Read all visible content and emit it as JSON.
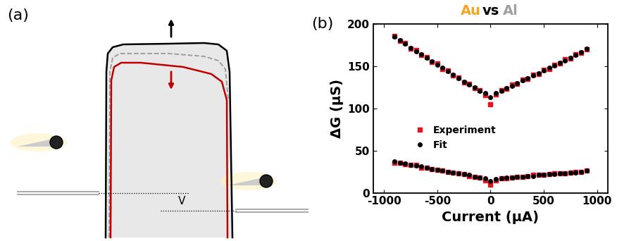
{
  "diagram": {
    "panel_label": "(a)",
    "bias_label": "V"
  },
  "chart_data": {
    "type": "scatter",
    "panel_label": "(b)",
    "title": "Au vs Al",
    "title_colors": [
      "#f5a623",
      "#000000",
      "#a0a0a0"
    ],
    "x_label": "Current (µA)",
    "y_label": "ΔG (µS)",
    "x": [
      -900,
      -850,
      -800,
      -750,
      -700,
      -650,
      -600,
      -550,
      -500,
      -450,
      -400,
      -350,
      -300,
      -250,
      -200,
      -150,
      -100,
      -50,
      0,
      50,
      100,
      150,
      200,
      250,
      300,
      350,
      400,
      450,
      500,
      550,
      600,
      650,
      700,
      750,
      800,
      850,
      900
    ],
    "series": [
      {
        "name": "Experiment",
        "color": "#e8141b",
        "marker": "square",
        "line_style": "none",
        "values": [
          [
            186,
            180,
            178,
            171,
            169,
            163,
            161,
            155,
            153,
            147,
            145,
            139,
            137,
            131,
            129,
            124,
            122,
            116,
            105,
            117,
            122,
            123,
            128,
            129,
            134,
            135,
            140,
            141,
            146,
            147,
            152,
            153,
            158,
            159,
            164,
            166,
            170
          ],
          [
            36,
            36,
            34,
            33,
            33,
            30,
            30,
            28,
            27,
            26,
            25,
            24,
            23,
            22,
            20,
            19,
            18,
            15,
            10,
            15,
            17,
            17,
            18,
            19,
            19,
            20,
            21,
            21,
            21,
            22,
            23,
            23,
            23,
            24,
            25,
            25,
            26
          ]
        ]
      },
      {
        "name": "Fit",
        "color": "#000000",
        "marker": "circle",
        "line_style": "none",
        "values": [
          [
            185,
            181,
            177,
            172,
            168,
            164,
            160,
            156,
            152,
            148,
            144,
            140,
            136,
            132,
            128,
            125,
            121,
            118,
            113,
            118,
            121,
            124,
            127,
            130,
            133,
            136,
            139,
            142,
            145,
            148,
            151,
            154,
            157,
            160,
            163,
            167,
            171
          ],
          [
            37,
            36,
            35,
            33,
            32,
            31,
            30,
            28,
            27,
            26,
            25,
            24,
            23,
            22,
            21,
            19,
            18,
            17,
            14,
            16,
            17,
            18,
            18,
            19,
            19,
            20,
            20,
            21,
            21,
            22,
            22,
            23,
            23,
            24,
            24,
            25,
            26
          ]
        ]
      }
    ],
    "xlim": [
      -1100,
      1100
    ],
    "xticks": [
      -1000,
      -500,
      0,
      500,
      1000
    ],
    "ylim": [
      0,
      200
    ],
    "yticks": [
      0,
      50,
      100,
      150,
      200
    ],
    "legend": "lower left",
    "grid": false
  }
}
